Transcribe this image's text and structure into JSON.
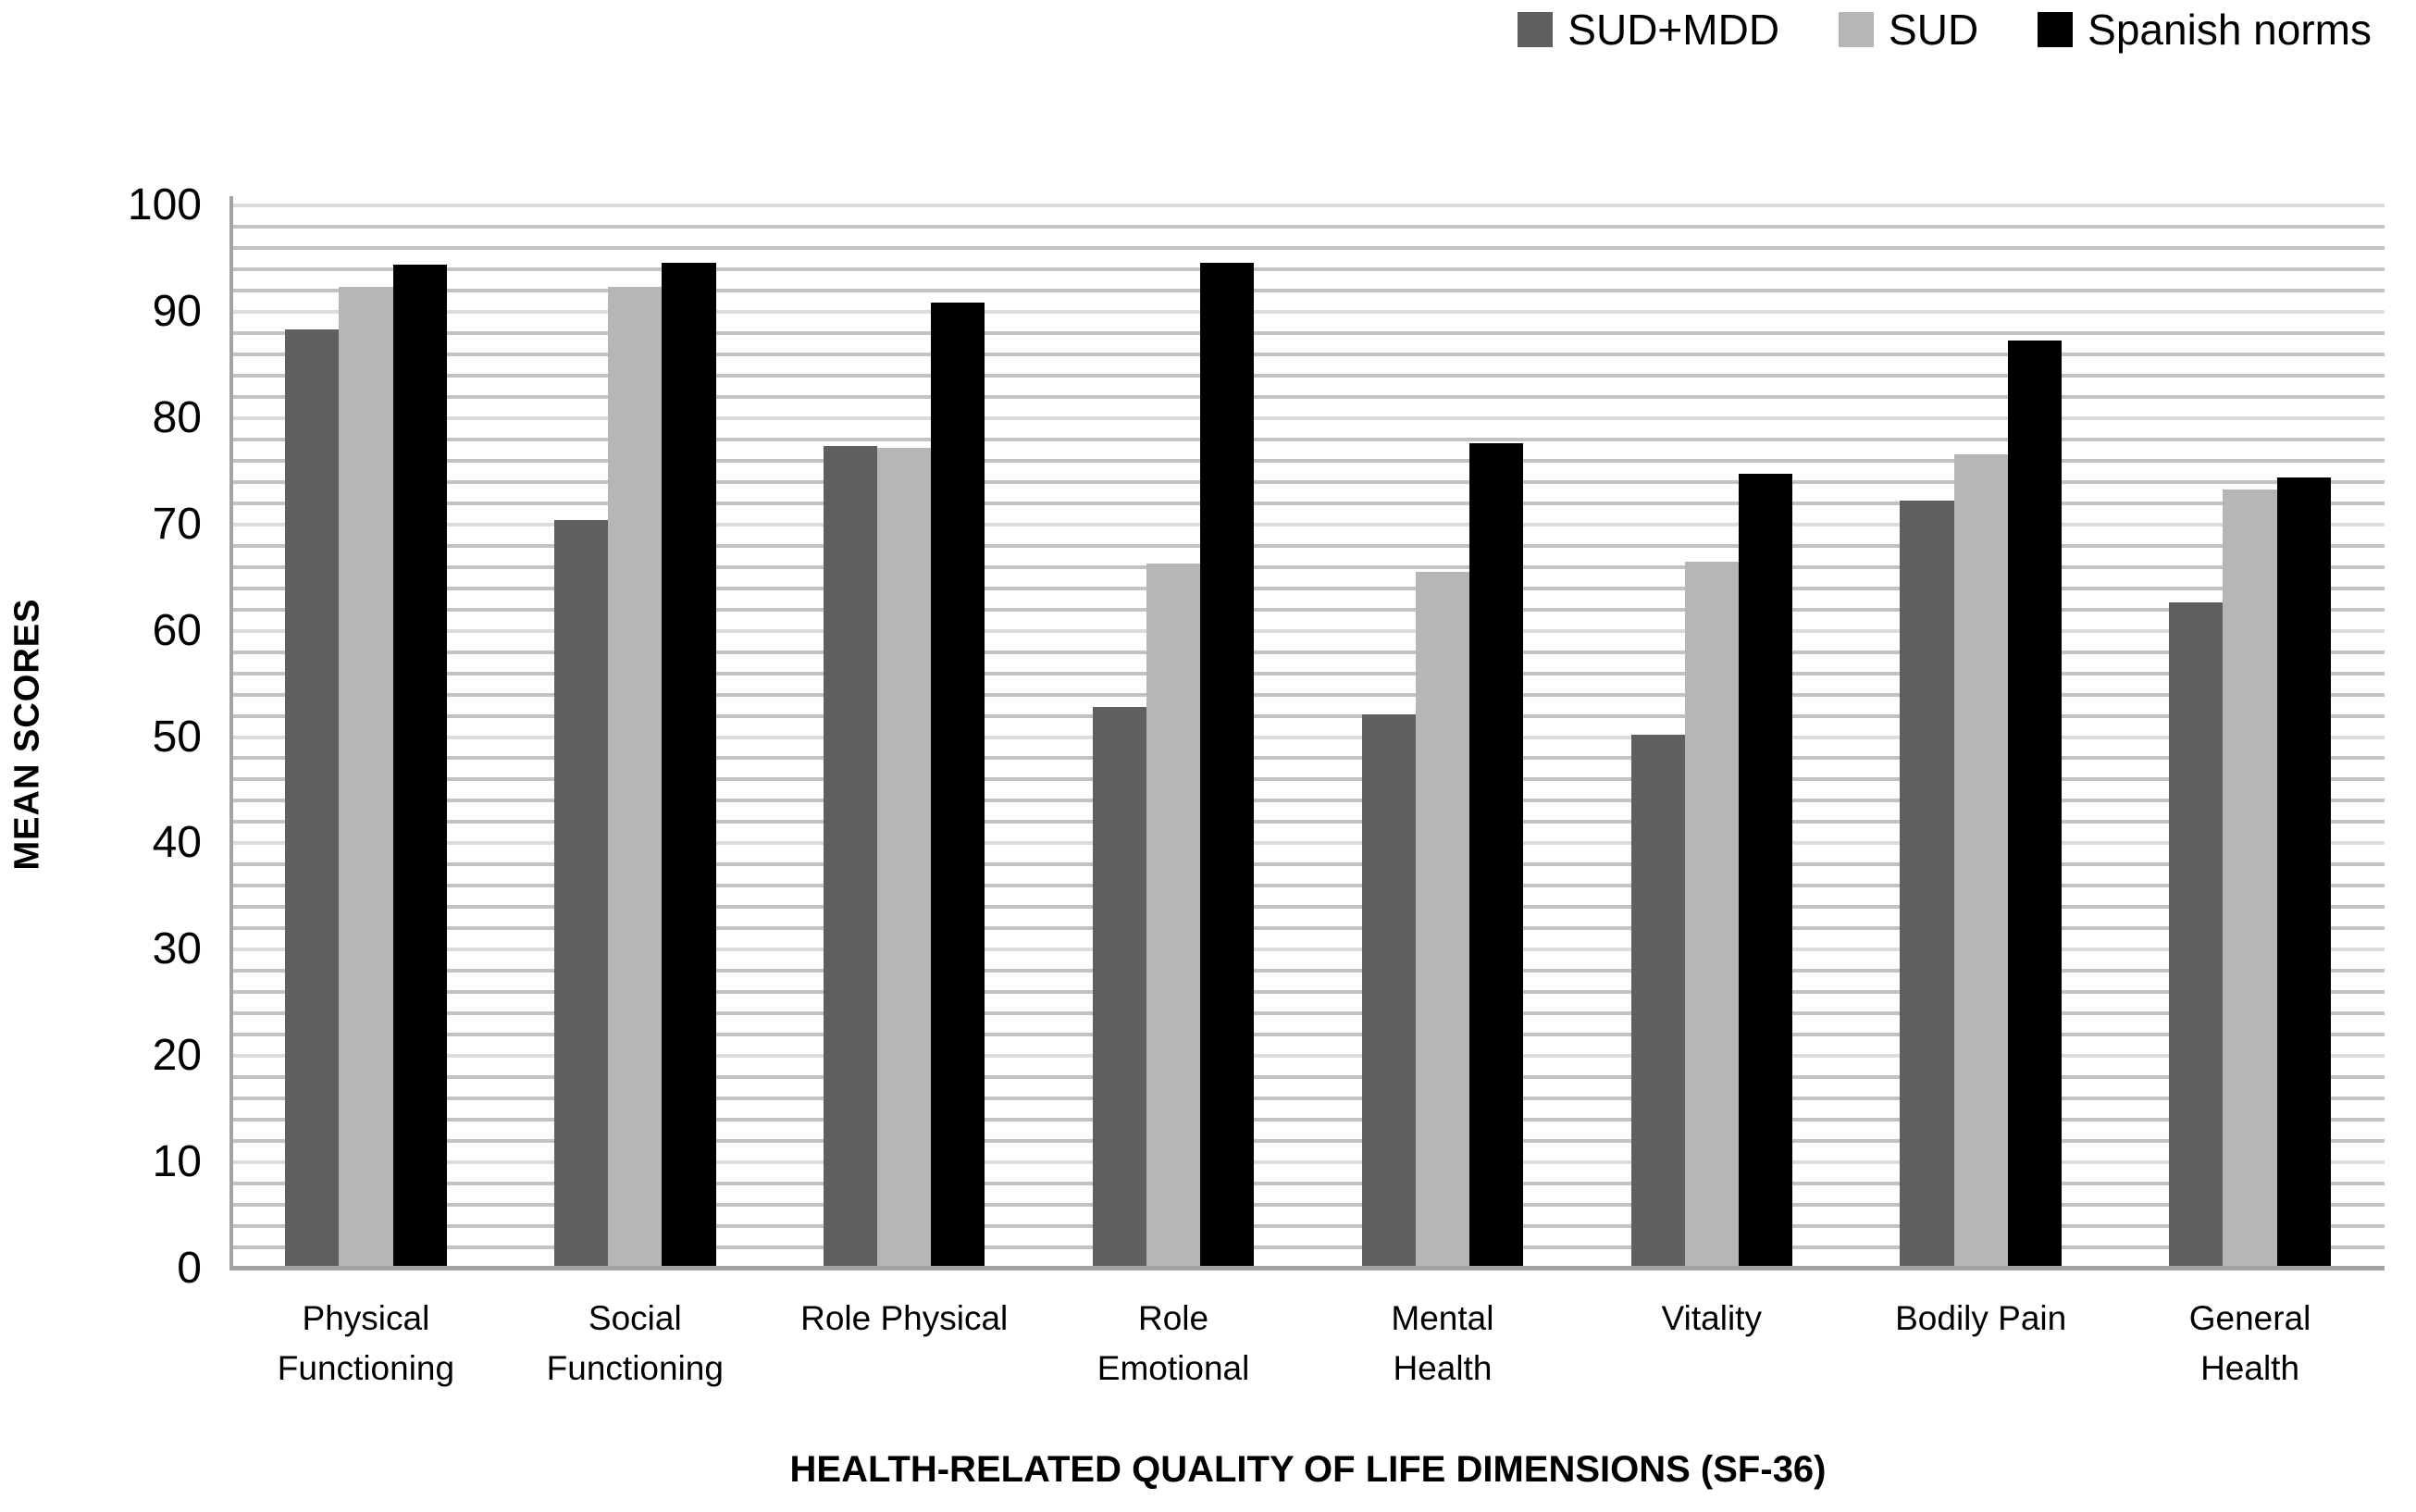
{
  "legend": [
    {
      "label": "SUD+MDD",
      "color": "#5f5f5f"
    },
    {
      "label": "SUD",
      "color": "#b6b6b6"
    },
    {
      "label": "Spanish norms",
      "color": "#000000"
    }
  ],
  "axes": {
    "y_title": "MEAN SCORES",
    "x_title": "HEALTH-RELATED QUALITY OF LIFE DIMENSIONS (SF-36)",
    "y_ticks": [
      0,
      10,
      20,
      30,
      40,
      50,
      60,
      70,
      80,
      90,
      100
    ]
  },
  "chart_data": {
    "type": "bar",
    "title": "",
    "xlabel": "HEALTH-RELATED QUALITY OF LIFE DIMENSIONS (SF-36)",
    "ylabel": "MEAN SCORES",
    "ylim": [
      0,
      100
    ],
    "gridline_step": 2,
    "major_step": 10,
    "grid": "on",
    "legend_position": "top-right",
    "categories": [
      "Physical Functioning",
      "Social Functioning",
      "Role Physical",
      "Role Emotional",
      "Mental Health",
      "Vitality",
      "Bodily Pain",
      "General Health"
    ],
    "category_label_lines": [
      "Physical\nFunctioning",
      "Social\nFunctioning",
      "Role Physical",
      "Role\nEmotional",
      "Mental\nHealth",
      "Vitality",
      "Bodily Pain",
      "General\nHealth"
    ],
    "series": [
      {
        "name": "SUD+MDD",
        "color": "#5f5f5f",
        "values": [
          88.3,
          70.4,
          77.4,
          52.8,
          52.1,
          50.2,
          72.2,
          62.7
        ]
      },
      {
        "name": "SUD",
        "color": "#b6b6b6",
        "values": [
          92.3,
          92.3,
          77.2,
          66.3,
          65.5,
          66.5,
          76.6,
          73.3
        ]
      },
      {
        "name": "Spanish norms",
        "color": "#000000",
        "values": [
          94.4,
          94.6,
          90.9,
          94.6,
          77.6,
          74.8,
          87.3,
          74.4
        ]
      }
    ]
  }
}
